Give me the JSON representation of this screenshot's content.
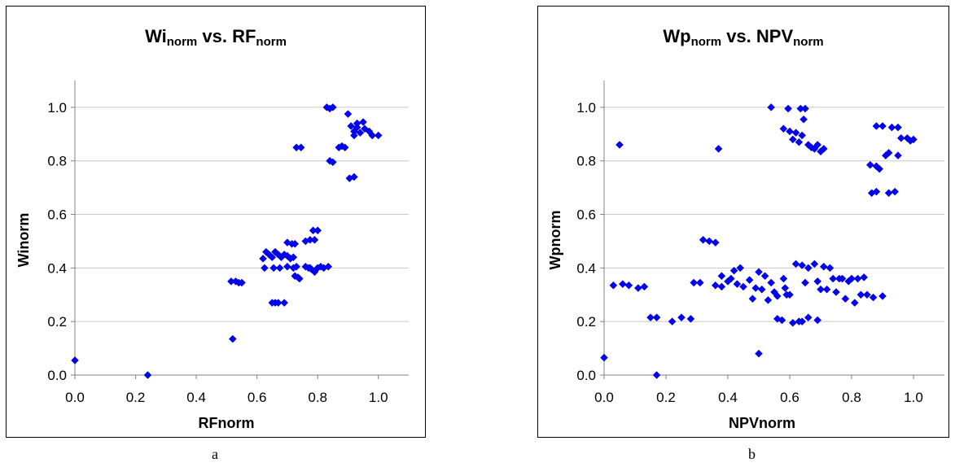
{
  "chart_data": [
    {
      "type": "scatter",
      "title": {
        "main1": "Wi",
        "sub1": "norm",
        "mid": " vs. RF",
        "sub2": "norm"
      },
      "xlabel": "RFnorm",
      "ylabel": "Winorm",
      "caption": "a",
      "xlim": [
        0,
        1.1
      ],
      "ylim": [
        0,
        1.1
      ],
      "xticks": [
        "0.0",
        "0.2",
        "0.4",
        "0.6",
        "0.8",
        "1.0"
      ],
      "yticks": [
        "0.0",
        "0.2",
        "0.4",
        "0.6",
        "0.8",
        "1.0"
      ],
      "grid": "horizontal",
      "marker_color": "#0000ff",
      "points": [
        [
          0.0,
          0.055
        ],
        [
          0.24,
          0.0
        ],
        [
          0.52,
          0.135
        ],
        [
          0.515,
          0.35
        ],
        [
          0.53,
          0.35
        ],
        [
          0.54,
          0.345
        ],
        [
          0.55,
          0.345
        ],
        [
          0.62,
          0.435
        ],
        [
          0.625,
          0.4
        ],
        [
          0.63,
          0.46
        ],
        [
          0.64,
          0.45
        ],
        [
          0.65,
          0.44
        ],
        [
          0.66,
          0.46
        ],
        [
          0.67,
          0.45
        ],
        [
          0.68,
          0.44
        ],
        [
          0.69,
          0.45
        ],
        [
          0.7,
          0.445
        ],
        [
          0.71,
          0.435
        ],
        [
          0.72,
          0.44
        ],
        [
          0.655,
          0.4
        ],
        [
          0.675,
          0.4
        ],
        [
          0.7,
          0.405
        ],
        [
          0.72,
          0.4
        ],
        [
          0.73,
          0.405
        ],
        [
          0.65,
          0.27
        ],
        [
          0.66,
          0.27
        ],
        [
          0.67,
          0.27
        ],
        [
          0.69,
          0.27
        ],
        [
          0.7,
          0.495
        ],
        [
          0.715,
          0.49
        ],
        [
          0.725,
          0.49
        ],
        [
          0.725,
          0.37
        ],
        [
          0.735,
          0.365
        ],
        [
          0.74,
          0.36
        ],
        [
          0.73,
          0.85
        ],
        [
          0.745,
          0.85
        ],
        [
          0.76,
          0.5
        ],
        [
          0.775,
          0.505
        ],
        [
          0.79,
          0.505
        ],
        [
          0.785,
          0.54
        ],
        [
          0.8,
          0.54
        ],
        [
          0.76,
          0.405
        ],
        [
          0.77,
          0.4
        ],
        [
          0.78,
          0.395
        ],
        [
          0.79,
          0.385
        ],
        [
          0.8,
          0.4
        ],
        [
          0.81,
          0.405
        ],
        [
          0.82,
          0.4
        ],
        [
          0.835,
          0.405
        ],
        [
          0.775,
          0.4
        ],
        [
          0.83,
          1.0
        ],
        [
          0.84,
          0.995
        ],
        [
          0.85,
          1.0
        ],
        [
          0.84,
          0.8
        ],
        [
          0.85,
          0.795
        ],
        [
          0.87,
          0.85
        ],
        [
          0.88,
          0.855
        ],
        [
          0.89,
          0.85
        ],
        [
          0.9,
          0.975
        ],
        [
          0.905,
          0.735
        ],
        [
          0.92,
          0.74
        ],
        [
          0.91,
          0.93
        ],
        [
          0.92,
          0.91
        ],
        [
          0.93,
          0.94
        ],
        [
          0.94,
          0.905
        ],
        [
          0.95,
          0.945
        ],
        [
          0.955,
          0.92
        ],
        [
          0.97,
          0.91
        ],
        [
          0.98,
          0.895
        ],
        [
          1.0,
          0.895
        ],
        [
          0.93,
          0.925
        ],
        [
          0.92,
          0.895
        ]
      ]
    },
    {
      "type": "scatter",
      "title": {
        "main1": "Wp",
        "sub1": "norm",
        "mid": " vs. NPV",
        "sub2": "norm"
      },
      "xlabel": "NPVnorm",
      "ylabel": "Wpnorm",
      "caption": "b",
      "xlim": [
        0,
        1.1
      ],
      "ylim": [
        0,
        1.1
      ],
      "xticks": [
        "0.0",
        "0.2",
        "0.4",
        "0.6",
        "0.8",
        "1.0"
      ],
      "yticks": [
        "0.0",
        "0.2",
        "0.4",
        "0.6",
        "0.8",
        "1.0"
      ],
      "grid": "horizontal",
      "marker_color": "#0000ff",
      "points": [
        [
          0.0,
          0.065
        ],
        [
          0.17,
          0.0
        ],
        [
          0.5,
          0.08
        ],
        [
          0.05,
          0.86
        ],
        [
          0.03,
          0.335
        ],
        [
          0.06,
          0.34
        ],
        [
          0.08,
          0.335
        ],
        [
          0.11,
          0.325
        ],
        [
          0.13,
          0.33
        ],
        [
          0.15,
          0.215
        ],
        [
          0.17,
          0.215
        ],
        [
          0.22,
          0.2
        ],
        [
          0.25,
          0.215
        ],
        [
          0.28,
          0.21
        ],
        [
          0.29,
          0.345
        ],
        [
          0.31,
          0.345
        ],
        [
          0.32,
          0.505
        ],
        [
          0.34,
          0.5
        ],
        [
          0.36,
          0.495
        ],
        [
          0.37,
          0.845
        ],
        [
          0.36,
          0.335
        ],
        [
          0.38,
          0.37
        ],
        [
          0.38,
          0.33
        ],
        [
          0.4,
          0.35
        ],
        [
          0.41,
          0.36
        ],
        [
          0.42,
          0.39
        ],
        [
          0.43,
          0.34
        ],
        [
          0.44,
          0.4
        ],
        [
          0.45,
          0.33
        ],
        [
          0.47,
          0.355
        ],
        [
          0.48,
          0.285
        ],
        [
          0.49,
          0.325
        ],
        [
          0.5,
          0.385
        ],
        [
          0.51,
          0.32
        ],
        [
          0.52,
          0.37
        ],
        [
          0.53,
          0.28
        ],
        [
          0.54,
          0.345
        ],
        [
          0.55,
          0.31
        ],
        [
          0.56,
          0.295
        ],
        [
          0.56,
          0.21
        ],
        [
          0.575,
          0.205
        ],
        [
          0.58,
          0.36
        ],
        [
          0.585,
          0.325
        ],
        [
          0.59,
          0.3
        ],
        [
          0.54,
          1.0
        ],
        [
          0.58,
          0.92
        ],
        [
          0.595,
          0.995
        ],
        [
          0.6,
          0.91
        ],
        [
          0.61,
          0.88
        ],
        [
          0.62,
          0.905
        ],
        [
          0.63,
          0.87
        ],
        [
          0.635,
          0.995
        ],
        [
          0.645,
          0.955
        ],
        [
          0.65,
          0.995
        ],
        [
          0.64,
          0.895
        ],
        [
          0.66,
          0.86
        ],
        [
          0.67,
          0.85
        ],
        [
          0.68,
          0.845
        ],
        [
          0.69,
          0.86
        ],
        [
          0.7,
          0.835
        ],
        [
          0.71,
          0.845
        ],
        [
          0.62,
          0.415
        ],
        [
          0.64,
          0.41
        ],
        [
          0.65,
          0.345
        ],
        [
          0.66,
          0.4
        ],
        [
          0.68,
          0.415
        ],
        [
          0.69,
          0.35
        ],
        [
          0.7,
          0.32
        ],
        [
          0.71,
          0.405
        ],
        [
          0.72,
          0.32
        ],
        [
          0.73,
          0.4
        ],
        [
          0.74,
          0.36
        ],
        [
          0.75,
          0.31
        ],
        [
          0.76,
          0.36
        ],
        [
          0.77,
          0.36
        ],
        [
          0.78,
          0.285
        ],
        [
          0.79,
          0.35
        ],
        [
          0.8,
          0.36
        ],
        [
          0.81,
          0.27
        ],
        [
          0.82,
          0.36
        ],
        [
          0.83,
          0.3
        ],
        [
          0.84,
          0.365
        ],
        [
          0.85,
          0.3
        ],
        [
          0.86,
          0.785
        ],
        [
          0.865,
          0.68
        ],
        [
          0.87,
          0.29
        ],
        [
          0.88,
          0.685
        ],
        [
          0.88,
          0.78
        ],
        [
          0.89,
          0.77
        ],
        [
          0.88,
          0.93
        ],
        [
          0.9,
          0.93
        ],
        [
          0.91,
          0.82
        ],
        [
          0.92,
          0.83
        ],
        [
          0.92,
          0.68
        ],
        [
          0.93,
          0.925
        ],
        [
          0.94,
          0.685
        ],
        [
          0.95,
          0.82
        ],
        [
          0.95,
          0.925
        ],
        [
          0.96,
          0.885
        ],
        [
          0.98,
          0.885
        ],
        [
          0.99,
          0.875
        ],
        [
          1.0,
          0.88
        ],
        [
          0.9,
          0.295
        ],
        [
          0.63,
          0.2
        ],
        [
          0.64,
          0.2
        ],
        [
          0.66,
          0.215
        ],
        [
          0.69,
          0.205
        ],
        [
          0.61,
          0.195
        ],
        [
          0.6,
          0.3
        ]
      ]
    }
  ]
}
